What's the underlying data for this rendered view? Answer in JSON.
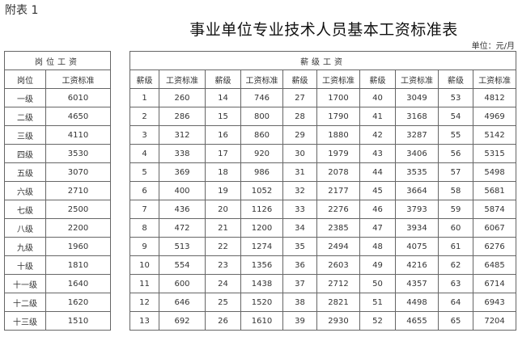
{
  "appendix_label": "附表 1",
  "title": "事业单位专业技术人员基本工资标准表",
  "unit": "单位：元/月",
  "post_table": {
    "caption": "岗位工资",
    "headers": [
      "岗位",
      "工资标准"
    ],
    "rows": [
      [
        "一级",
        "6010"
      ],
      [
        "二级",
        "4650"
      ],
      [
        "三级",
        "4110"
      ],
      [
        "四级",
        "3530"
      ],
      [
        "五级",
        "3070"
      ],
      [
        "六级",
        "2710"
      ],
      [
        "七级",
        "2500"
      ],
      [
        "八级",
        "2200"
      ],
      [
        "九级",
        "1960"
      ],
      [
        "十级",
        "1810"
      ],
      [
        "十一级",
        "1640"
      ],
      [
        "十二级",
        "1620"
      ],
      [
        "十三级",
        "1510"
      ]
    ]
  },
  "grade_table": {
    "caption": "薪级工资",
    "headers": [
      "薪级",
      "工资标准",
      "薪级",
      "工资标准",
      "薪级",
      "工资标准",
      "薪级",
      "工资标准",
      "薪级",
      "工资标准"
    ],
    "rows": [
      [
        "1",
        "260",
        "14",
        "746",
        "27",
        "1700",
        "40",
        "3049",
        "53",
        "4812"
      ],
      [
        "2",
        "286",
        "15",
        "800",
        "28",
        "1790",
        "41",
        "3168",
        "54",
        "4969"
      ],
      [
        "3",
        "312",
        "16",
        "860",
        "29",
        "1880",
        "42",
        "3287",
        "55",
        "5142"
      ],
      [
        "4",
        "338",
        "17",
        "920",
        "30",
        "1979",
        "43",
        "3406",
        "56",
        "5315"
      ],
      [
        "5",
        "369",
        "18",
        "986",
        "31",
        "2078",
        "44",
        "3535",
        "57",
        "5498"
      ],
      [
        "6",
        "400",
        "19",
        "1052",
        "32",
        "2177",
        "45",
        "3664",
        "58",
        "5681"
      ],
      [
        "7",
        "436",
        "20",
        "1126",
        "33",
        "2276",
        "46",
        "3793",
        "59",
        "5874"
      ],
      [
        "8",
        "472",
        "21",
        "1200",
        "34",
        "2385",
        "47",
        "3934",
        "60",
        "6067"
      ],
      [
        "9",
        "513",
        "22",
        "1274",
        "35",
        "2494",
        "48",
        "4075",
        "61",
        "6276"
      ],
      [
        "10",
        "554",
        "23",
        "1356",
        "36",
        "2603",
        "49",
        "4216",
        "62",
        "6485"
      ],
      [
        "11",
        "600",
        "24",
        "1438",
        "37",
        "2712",
        "50",
        "4357",
        "63",
        "6714"
      ],
      [
        "12",
        "646",
        "25",
        "1520",
        "38",
        "2821",
        "51",
        "4498",
        "64",
        "6943"
      ],
      [
        "13",
        "692",
        "26",
        "1610",
        "39",
        "2930",
        "52",
        "4655",
        "65",
        "7204"
      ]
    ]
  }
}
